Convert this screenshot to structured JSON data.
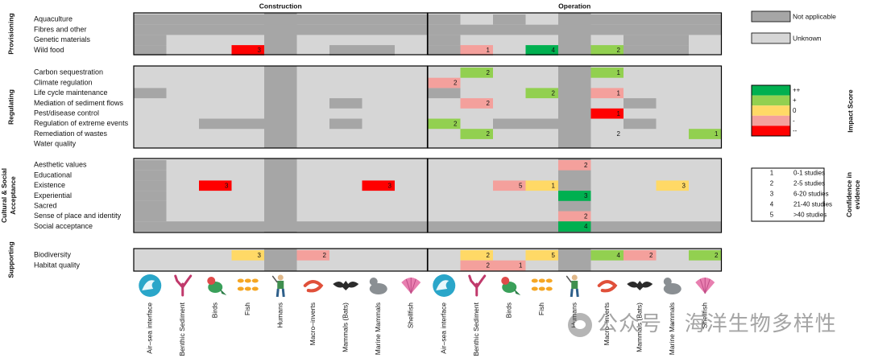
{
  "chart_data": {
    "type": "heatmap",
    "phases": [
      "Construction",
      "Operation"
    ],
    "columns": [
      "Air–sea interface",
      "Benthic Sediment",
      "Birds",
      "Fish",
      "Humans",
      "Macro–inverts",
      "Mammals (Bats)",
      "Marine Mammals",
      "Shellfish"
    ],
    "groups": [
      {
        "name": "Provisioning",
        "rows": [
          "Aquaculture",
          "Fibres and other",
          "Genetic materials",
          "Wild food"
        ]
      },
      {
        "name": "Regulating",
        "rows": [
          "Carbon sequestration",
          "Climate regulation",
          "Life cycle maintenance",
          "Mediation of sediment flows",
          "Pest/disease control",
          "Regulation of extreme events",
          "Remediation of wastes",
          "Water quality"
        ]
      },
      {
        "name": "Cultural & Social Acceptance",
        "rows": [
          "Aesthetic values",
          "Educational",
          "Existence",
          "Experiential",
          "Sacred",
          "Sense of place and identity",
          "Social acceptance"
        ]
      },
      {
        "name": "Supporting",
        "rows": [
          "Biodiversity",
          "Habitat quality"
        ]
      }
    ],
    "legend_applicability": [
      {
        "key": "na",
        "label": "Not applicable",
        "color": "#a6a6a6"
      },
      {
        "key": "unknown",
        "label": "Unknown",
        "color": "#d6d6d6"
      }
    ],
    "legend_impact": {
      "title": "Impact Score",
      "items": [
        {
          "key": "++",
          "label": "++",
          "color": "#00b050"
        },
        {
          "key": "+",
          "label": "+",
          "color": "#92d050"
        },
        {
          "key": "0",
          "label": "0",
          "color": "#ffd966"
        },
        {
          "key": "-",
          "label": "-",
          "color": "#f4a09c"
        },
        {
          "key": "--",
          "label": "--",
          "color": "#ff0000"
        }
      ]
    },
    "legend_confidence": {
      "title": "Confidence in evidence",
      "items": [
        {
          "level": "1",
          "label": "0-1 studies"
        },
        {
          "level": "2",
          "label": "2-5 studies"
        },
        {
          "level": "3",
          "label": "6-20 studies"
        },
        {
          "level": "4",
          "label": "21-40 studies"
        },
        {
          "level": "5",
          "label": ">40 studies"
        }
      ]
    },
    "base_na_cells": [
      {
        "phase": 0,
        "row": "Aquaculture",
        "cols": [
          0,
          1,
          2,
          3,
          4,
          5,
          6,
          7,
          8
        ]
      },
      {
        "phase": 0,
        "row": "Fibres and other",
        "cols": [
          0,
          1,
          2,
          3,
          4,
          5,
          6,
          7,
          8
        ]
      },
      {
        "phase": 0,
        "row": "Genetic materials",
        "cols": [
          0
        ]
      },
      {
        "phase": 0,
        "row": "Wild food",
        "cols": [
          0
        ]
      },
      {
        "phase": 0,
        "row": "Life cycle maintenance",
        "cols": [
          0
        ]
      },
      {
        "phase": 0,
        "row": "Regulation of extreme events",
        "cols": [
          2,
          3,
          6
        ]
      },
      {
        "phase": 0,
        "row": "Mediation of sediment flows",
        "cols": [
          6
        ]
      },
      {
        "phase": 0,
        "row": "Wild food",
        "cols": [
          6,
          7
        ]
      },
      {
        "phase": 0,
        "row": "Aesthetic values",
        "cols": [
          0
        ]
      },
      {
        "phase": 0,
        "row": "Educational",
        "cols": [
          0
        ]
      },
      {
        "phase": 0,
        "row": "Existence",
        "cols": [
          0
        ]
      },
      {
        "phase": 0,
        "row": "Experiential",
        "cols": [
          0
        ]
      },
      {
        "phase": 0,
        "row": "Sacred",
        "cols": [
          0
        ]
      },
      {
        "phase": 0,
        "row": "Sense of place and identity",
        "cols": [
          0
        ]
      },
      {
        "phase": 0,
        "row": "Social acceptance",
        "cols": [
          0,
          1,
          2,
          3,
          5,
          6,
          7,
          8
        ]
      },
      {
        "phase": 1,
        "row": "Aquaculture",
        "cols": [
          0,
          2,
          5,
          6,
          7,
          8
        ]
      },
      {
        "phase": 1,
        "row": "Fibres and other",
        "cols": [
          0,
          1,
          2,
          3,
          5,
          6,
          7,
          8
        ]
      },
      {
        "phase": 1,
        "row": "Genetic materials",
        "cols": [
          0,
          6,
          7
        ]
      },
      {
        "phase": 1,
        "row": "Wild food",
        "cols": [
          0
        ]
      },
      {
        "phase": 1,
        "row": "Life cycle maintenance",
        "cols": [
          0
        ]
      },
      {
        "phase": 1,
        "row": "Regulation of extreme events",
        "cols": [
          2,
          3,
          6
        ]
      },
      {
        "phase": 1,
        "row": "Mediation of sediment flows",
        "cols": [
          6
        ]
      },
      {
        "phase": 1,
        "row": "Wild food",
        "cols": [
          6,
          7
        ]
      },
      {
        "phase": 1,
        "row": "Social acceptance",
        "cols": [
          0,
          1,
          2,
          3,
          5,
          6,
          7,
          8
        ]
      }
    ],
    "humans_na_all_rows": true,
    "cells": [
      {
        "phase": 0,
        "row": "Wild food",
        "col": 3,
        "score": "--",
        "evidence": "3"
      },
      {
        "phase": 0,
        "row": "Existence",
        "col": 2,
        "score": "--",
        "evidence": "3"
      },
      {
        "phase": 0,
        "row": "Existence",
        "col": 7,
        "score": "--",
        "evidence": "3"
      },
      {
        "phase": 0,
        "row": "Biodiversity",
        "col": 3,
        "score": "0",
        "evidence": "3"
      },
      {
        "phase": 0,
        "row": "Biodiversity",
        "col": 5,
        "score": "-",
        "evidence": "2"
      },
      {
        "phase": 1,
        "row": "Wild food",
        "col": 1,
        "score": "-",
        "evidence": "1"
      },
      {
        "phase": 1,
        "row": "Wild food",
        "col": 3,
        "score": "++",
        "evidence": "4"
      },
      {
        "phase": 1,
        "row": "Wild food",
        "col": 5,
        "score": "+",
        "evidence": "2"
      },
      {
        "phase": 1,
        "row": "Carbon sequestration",
        "col": 1,
        "score": "+",
        "evidence": "2"
      },
      {
        "phase": 1,
        "row": "Carbon sequestration",
        "col": 5,
        "score": "+",
        "evidence": "1"
      },
      {
        "phase": 1,
        "row": "Climate regulation",
        "col": 0,
        "score": "-",
        "evidence": "2"
      },
      {
        "phase": 1,
        "row": "Life cycle maintenance",
        "col": 3,
        "score": "+",
        "evidence": "2"
      },
      {
        "phase": 1,
        "row": "Life cycle maintenance",
        "col": 5,
        "score": "-",
        "evidence": "1"
      },
      {
        "phase": 1,
        "row": "Mediation of sediment flows",
        "col": 1,
        "score": "-",
        "evidence": "2"
      },
      {
        "phase": 1,
        "row": "Pest/disease control",
        "col": 5,
        "score": "--",
        "evidence": "1"
      },
      {
        "phase": 1,
        "row": "Regulation of extreme events",
        "col": 0,
        "score": "+",
        "evidence": "2"
      },
      {
        "phase": 1,
        "row": "Remediation of wastes",
        "col": 1,
        "score": "+",
        "evidence": "2"
      },
      {
        "phase": 1,
        "row": "Remediation of wastes",
        "col": 5,
        "score": "unknown",
        "evidence": "2"
      },
      {
        "phase": 1,
        "row": "Remediation of wastes",
        "col": 8,
        "score": "+",
        "evidence": "1"
      },
      {
        "phase": 1,
        "row": "Aesthetic values",
        "col": 4,
        "score": "-",
        "evidence": "2"
      },
      {
        "phase": 1,
        "row": "Existence",
        "col": 2,
        "score": "-",
        "evidence": "5"
      },
      {
        "phase": 1,
        "row": "Existence",
        "col": 3,
        "score": "0",
        "evidence": "1"
      },
      {
        "phase": 1,
        "row": "Existence",
        "col": 7,
        "score": "0",
        "evidence": "3"
      },
      {
        "phase": 1,
        "row": "Experiential",
        "col": 4,
        "score": "++",
        "evidence": "3"
      },
      {
        "phase": 1,
        "row": "Sense of place and identity",
        "col": 4,
        "score": "-",
        "evidence": "2"
      },
      {
        "phase": 1,
        "row": "Social acceptance",
        "col": 4,
        "score": "++",
        "evidence": "4"
      },
      {
        "phase": 1,
        "row": "Biodiversity",
        "col": 1,
        "score": "0",
        "evidence": "2"
      },
      {
        "phase": 1,
        "row": "Biodiversity",
        "col": 3,
        "score": "0",
        "evidence": "5"
      },
      {
        "phase": 1,
        "row": "Biodiversity",
        "col": 5,
        "score": "+",
        "evidence": "4"
      },
      {
        "phase": 1,
        "row": "Biodiversity",
        "col": 6,
        "score": "-",
        "evidence": "2"
      },
      {
        "phase": 1,
        "row": "Biodiversity",
        "col": 8,
        "score": "+",
        "evidence": "2"
      },
      {
        "phase": 1,
        "row": "Habitat quality",
        "col": 1,
        "score": "-",
        "evidence": "2"
      },
      {
        "phase": 1,
        "row": "Habitat quality",
        "col": 2,
        "score": "-",
        "evidence": "1"
      }
    ],
    "column_icons": [
      "wave-icon",
      "coral-icon",
      "bird-icon",
      "fish-icon",
      "human-icon",
      "shrimp-icon",
      "bat-icon",
      "seal-icon",
      "shell-icon"
    ]
  },
  "watermark": "公众号 · 海洋生物多样性"
}
